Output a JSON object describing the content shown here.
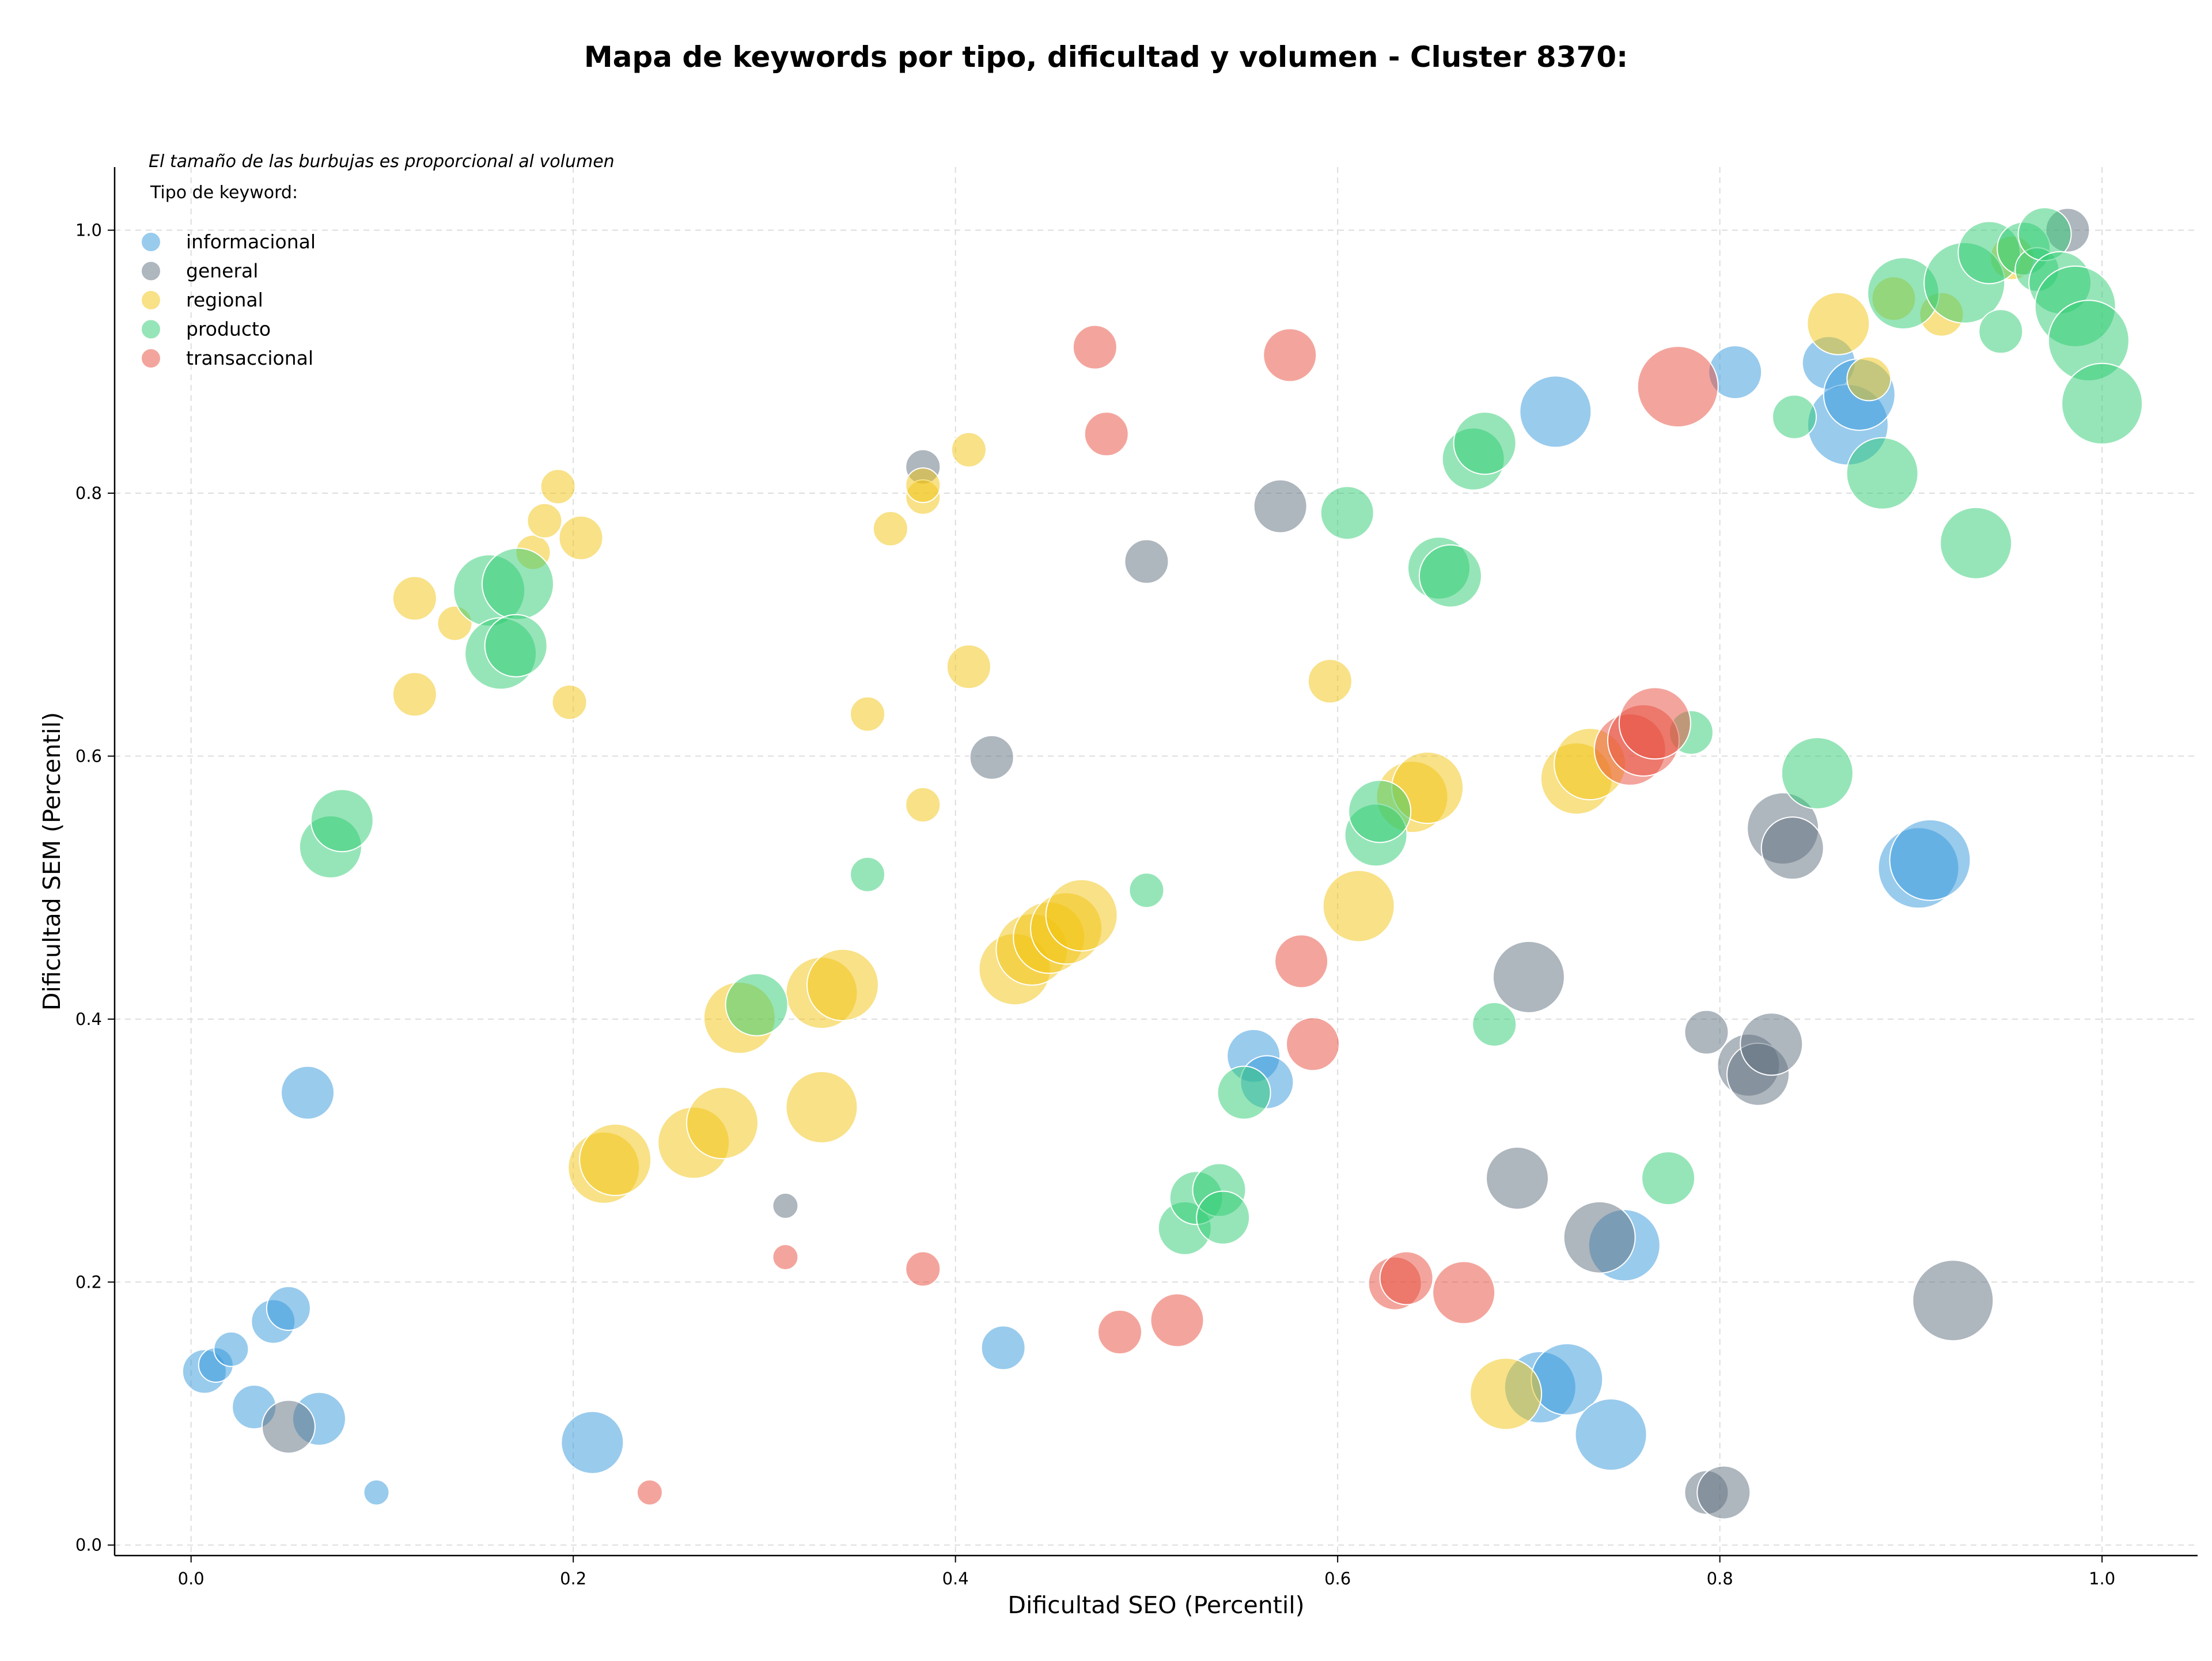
{
  "chart_data": {
    "type": "scatter",
    "title": "Mapa de keywords por tipo, dificultad y volumen - Cluster 8370:",
    "xlabel": "Dificultad SEO (Percentil)",
    "ylabel": "Dificultad SEM (Percentil)",
    "xlim": [
      -0.04,
      1.05
    ],
    "ylim": [
      -0.008,
      1.048
    ],
    "xticks": [
      0.0,
      0.2,
      0.4,
      0.6,
      0.8,
      1.0
    ],
    "xtick_labels": [
      "0.0",
      "0.2",
      "0.4",
      "0.6",
      "0.8",
      "1.0"
    ],
    "yticks": [
      0.0,
      0.2,
      0.4,
      0.6,
      0.8,
      1.0
    ],
    "ytick_labels": [
      "0.0",
      "0.2",
      "0.4",
      "0.6",
      "0.8",
      "1.0"
    ],
    "grid": true,
    "note": "El tamaño de las burbujas es proporcional al volumen",
    "legend_title": "Tipo de keyword:",
    "legend_position": "top-left",
    "series": [
      {
        "name": "informacional",
        "color": "#3498db",
        "points": [
          {
            "x": 0.007,
            "y": 0.132,
            "size": 3
          },
          {
            "x": 0.013,
            "y": 0.137,
            "size": 2
          },
          {
            "x": 0.021,
            "y": 0.149,
            "size": 2
          },
          {
            "x": 0.043,
            "y": 0.17,
            "size": 3
          },
          {
            "x": 0.051,
            "y": 0.18,
            "size": 3
          },
          {
            "x": 0.033,
            "y": 0.105,
            "size": 3
          },
          {
            "x": 0.067,
            "y": 0.096,
            "size": 4
          },
          {
            "x": 0.097,
            "y": 0.04,
            "size": 1
          },
          {
            "x": 0.061,
            "y": 0.344,
            "size": 4
          },
          {
            "x": 0.21,
            "y": 0.078,
            "size": 5
          },
          {
            "x": 0.425,
            "y": 0.15,
            "size": 3
          },
          {
            "x": 0.556,
            "y": 0.372,
            "size": 4
          },
          {
            "x": 0.563,
            "y": 0.352,
            "size": 4
          },
          {
            "x": 0.706,
            "y": 0.12,
            "size": 6
          },
          {
            "x": 0.72,
            "y": 0.126,
            "size": 6
          },
          {
            "x": 0.743,
            "y": 0.084,
            "size": 6
          },
          {
            "x": 0.75,
            "y": 0.228,
            "size": 6
          },
          {
            "x": 0.714,
            "y": 0.862,
            "size": 6
          },
          {
            "x": 0.808,
            "y": 0.892,
            "size": 4
          },
          {
            "x": 0.857,
            "y": 0.899,
            "size": 4
          },
          {
            "x": 0.867,
            "y": 0.852,
            "size": 7
          },
          {
            "x": 0.873,
            "y": 0.875,
            "size": 6
          },
          {
            "x": 0.904,
            "y": 0.515,
            "size": 7
          },
          {
            "x": 0.91,
            "y": 0.521,
            "size": 7
          }
        ]
      },
      {
        "name": "general",
        "color": "#5d6d7e",
        "points": [
          {
            "x": 0.051,
            "y": 0.09,
            "size": 4
          },
          {
            "x": 0.311,
            "y": 0.258,
            "size": 1
          },
          {
            "x": 0.383,
            "y": 0.82,
            "size": 2
          },
          {
            "x": 0.419,
            "y": 0.599,
            "size": 3
          },
          {
            "x": 0.5,
            "y": 0.748,
            "size": 3
          },
          {
            "x": 0.57,
            "y": 0.79,
            "size": 4
          },
          {
            "x": 0.694,
            "y": 0.279,
            "size": 5
          },
          {
            "x": 0.7,
            "y": 0.432,
            "size": 6
          },
          {
            "x": 0.737,
            "y": 0.234,
            "size": 6
          },
          {
            "x": 0.793,
            "y": 0.04,
            "size": 3
          },
          {
            "x": 0.793,
            "y": 0.39,
            "size": 3
          },
          {
            "x": 0.802,
            "y": 0.04,
            "size": 4
          },
          {
            "x": 0.815,
            "y": 0.365,
            "size": 5
          },
          {
            "x": 0.82,
            "y": 0.358,
            "size": 5
          },
          {
            "x": 0.827,
            "y": 0.381,
            "size": 5
          },
          {
            "x": 0.833,
            "y": 0.545,
            "size": 6
          },
          {
            "x": 0.838,
            "y": 0.53,
            "size": 5
          },
          {
            "x": 0.922,
            "y": 0.186,
            "size": 7
          },
          {
            "x": 0.982,
            "y": 1.0,
            "size": 3
          }
        ]
      },
      {
        "name": "regional",
        "color": "#f1c40f",
        "points": [
          {
            "x": 0.117,
            "y": 0.72,
            "size": 3
          },
          {
            "x": 0.117,
            "y": 0.647,
            "size": 3
          },
          {
            "x": 0.138,
            "y": 0.701,
            "size": 2
          },
          {
            "x": 0.179,
            "y": 0.755,
            "size": 2
          },
          {
            "x": 0.185,
            "y": 0.779,
            "size": 2
          },
          {
            "x": 0.192,
            "y": 0.805,
            "size": 2
          },
          {
            "x": 0.204,
            "y": 0.766,
            "size": 3
          },
          {
            "x": 0.198,
            "y": 0.641,
            "size": 2
          },
          {
            "x": 0.216,
            "y": 0.287,
            "size": 6
          },
          {
            "x": 0.222,
            "y": 0.293,
            "size": 6
          },
          {
            "x": 0.263,
            "y": 0.306,
            "size": 6
          },
          {
            "x": 0.278,
            "y": 0.321,
            "size": 6
          },
          {
            "x": 0.287,
            "y": 0.401,
            "size": 6
          },
          {
            "x": 0.33,
            "y": 0.333,
            "size": 6
          },
          {
            "x": 0.33,
            "y": 0.42,
            "size": 6
          },
          {
            "x": 0.341,
            "y": 0.426,
            "size": 6
          },
          {
            "x": 0.354,
            "y": 0.632,
            "size": 2
          },
          {
            "x": 0.366,
            "y": 0.773,
            "size": 2
          },
          {
            "x": 0.383,
            "y": 0.797,
            "size": 2
          },
          {
            "x": 0.383,
            "y": 0.806,
            "size": 2
          },
          {
            "x": 0.383,
            "y": 0.563,
            "size": 2
          },
          {
            "x": 0.407,
            "y": 0.833,
            "size": 2
          },
          {
            "x": 0.407,
            "y": 0.668,
            "size": 3
          },
          {
            "x": 0.431,
            "y": 0.438,
            "size": 6
          },
          {
            "x": 0.44,
            "y": 0.453,
            "size": 6
          },
          {
            "x": 0.449,
            "y": 0.462,
            "size": 6
          },
          {
            "x": 0.458,
            "y": 0.469,
            "size": 6
          },
          {
            "x": 0.466,
            "y": 0.479,
            "size": 6
          },
          {
            "x": 0.596,
            "y": 0.657,
            "size": 3
          },
          {
            "x": 0.611,
            "y": 0.486,
            "size": 6
          },
          {
            "x": 0.639,
            "y": 0.569,
            "size": 6
          },
          {
            "x": 0.647,
            "y": 0.576,
            "size": 6
          },
          {
            "x": 0.688,
            "y": 0.115,
            "size": 6
          },
          {
            "x": 0.725,
            "y": 0.583,
            "size": 6
          },
          {
            "x": 0.732,
            "y": 0.594,
            "size": 6
          },
          {
            "x": 0.862,
            "y": 0.929,
            "size": 5
          },
          {
            "x": 0.878,
            "y": 0.887,
            "size": 3
          },
          {
            "x": 0.891,
            "y": 0.948,
            "size": 3
          },
          {
            "x": 0.916,
            "y": 0.936,
            "size": 3
          },
          {
            "x": 0.953,
            "y": 0.979,
            "size": 3
          }
        ]
      },
      {
        "name": "producto",
        "color": "#2ecc71",
        "points": [
          {
            "x": 0.073,
            "y": 0.531,
            "size": 5
          },
          {
            "x": 0.079,
            "y": 0.551,
            "size": 5
          },
          {
            "x": 0.156,
            "y": 0.726,
            "size": 6
          },
          {
            "x": 0.171,
            "y": 0.731,
            "size": 6
          },
          {
            "x": 0.162,
            "y": 0.678,
            "size": 6
          },
          {
            "x": 0.17,
            "y": 0.684,
            "size": 5
          },
          {
            "x": 0.296,
            "y": 0.411,
            "size": 5
          },
          {
            "x": 0.354,
            "y": 0.51,
            "size": 2
          },
          {
            "x": 0.5,
            "y": 0.498,
            "size": 2
          },
          {
            "x": 0.52,
            "y": 0.241,
            "size": 4
          },
          {
            "x": 0.526,
            "y": 0.264,
            "size": 4
          },
          {
            "x": 0.538,
            "y": 0.27,
            "size": 4
          },
          {
            "x": 0.54,
            "y": 0.249,
            "size": 4
          },
          {
            "x": 0.551,
            "y": 0.344,
            "size": 4
          },
          {
            "x": 0.605,
            "y": 0.785,
            "size": 4
          },
          {
            "x": 0.62,
            "y": 0.54,
            "size": 5
          },
          {
            "x": 0.622,
            "y": 0.558,
            "size": 5
          },
          {
            "x": 0.653,
            "y": 0.743,
            "size": 5
          },
          {
            "x": 0.659,
            "y": 0.737,
            "size": 5
          },
          {
            "x": 0.682,
            "y": 0.396,
            "size": 3
          },
          {
            "x": 0.671,
            "y": 0.826,
            "size": 5
          },
          {
            "x": 0.677,
            "y": 0.838,
            "size": 5
          },
          {
            "x": 0.773,
            "y": 0.279,
            "size": 4
          },
          {
            "x": 0.785,
            "y": 0.618,
            "size": 3
          },
          {
            "x": 0.839,
            "y": 0.858,
            "size": 3
          },
          {
            "x": 0.851,
            "y": 0.587,
            "size": 6
          },
          {
            "x": 0.885,
            "y": 0.815,
            "size": 6
          },
          {
            "x": 0.896,
            "y": 0.952,
            "size": 6
          },
          {
            "x": 0.934,
            "y": 0.762,
            "size": 6
          },
          {
            "x": 0.928,
            "y": 0.96,
            "size": 7
          },
          {
            "x": 0.941,
            "y": 0.983,
            "size": 5
          },
          {
            "x": 0.947,
            "y": 0.923,
            "size": 3
          },
          {
            "x": 0.959,
            "y": 0.986,
            "size": 4
          },
          {
            "x": 0.966,
            "y": 0.97,
            "size": 3
          },
          {
            "x": 0.97,
            "y": 0.997,
            "size": 4
          },
          {
            "x": 0.978,
            "y": 0.96,
            "size": 5
          },
          {
            "x": 0.986,
            "y": 0.942,
            "size": 7
          },
          {
            "x": 0.993,
            "y": 0.916,
            "size": 7
          },
          {
            "x": 1.0,
            "y": 0.868,
            "size": 7
          }
        ]
      },
      {
        "name": "transaccional",
        "color": "#e74c3c",
        "points": [
          {
            "x": 0.24,
            "y": 0.04,
            "size": 1
          },
          {
            "x": 0.311,
            "y": 0.219,
            "size": 1
          },
          {
            "x": 0.383,
            "y": 0.21,
            "size": 2
          },
          {
            "x": 0.473,
            "y": 0.911,
            "size": 3
          },
          {
            "x": 0.479,
            "y": 0.845,
            "size": 3
          },
          {
            "x": 0.486,
            "y": 0.162,
            "size": 3
          },
          {
            "x": 0.516,
            "y": 0.171,
            "size": 4
          },
          {
            "x": 0.575,
            "y": 0.905,
            "size": 4
          },
          {
            "x": 0.581,
            "y": 0.444,
            "size": 4
          },
          {
            "x": 0.587,
            "y": 0.381,
            "size": 4
          },
          {
            "x": 0.63,
            "y": 0.199,
            "size": 4
          },
          {
            "x": 0.636,
            "y": 0.203,
            "size": 4
          },
          {
            "x": 0.666,
            "y": 0.192,
            "size": 5
          },
          {
            "x": 0.753,
            "y": 0.605,
            "size": 6
          },
          {
            "x": 0.76,
            "y": 0.612,
            "size": 6
          },
          {
            "x": 0.766,
            "y": 0.625,
            "size": 6
          },
          {
            "x": 0.778,
            "y": 0.881,
            "size": 7
          }
        ]
      }
    ]
  }
}
